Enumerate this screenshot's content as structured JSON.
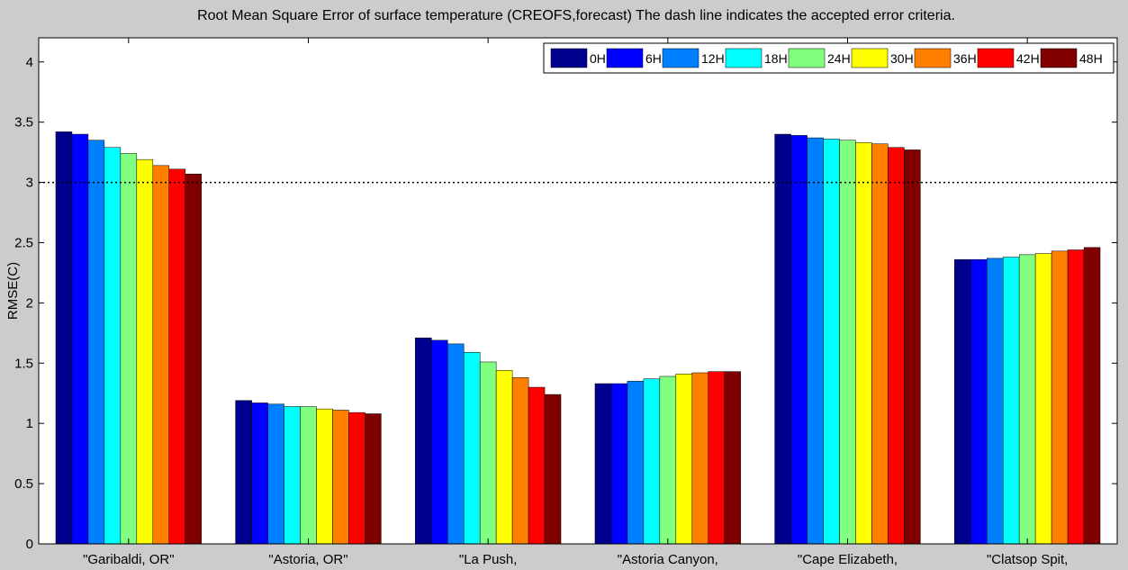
{
  "chart_data": {
    "type": "bar",
    "title": "Root Mean Square Error of surface temperature  (CREOFS,forecast)   The dash line indicates the accepted error criteria.",
    "xlabel": "",
    "ylabel": "RMSE(C)",
    "ylim": [
      0,
      4.2
    ],
    "yticks": [
      "0",
      "0.5",
      "1",
      "1.5",
      "2",
      "2.5",
      "3",
      "3.5",
      "4"
    ],
    "grid": false,
    "legend_position": "top-right",
    "reference_line": {
      "value": 3,
      "style": "dotted"
    },
    "categories": [
      "\"Garibaldi, OR\"",
      "\"Astoria, OR\"",
      "\"La Push,",
      "\"Astoria Canyon,",
      "\"Cape Elizabeth,",
      "\"Clatsop Spit,"
    ],
    "series": [
      {
        "name": "0H",
        "color": "#00008f",
        "values": [
          3.42,
          1.19,
          1.71,
          1.33,
          3.4,
          2.36
        ]
      },
      {
        "name": "6H",
        "color": "#0000ff",
        "values": [
          3.4,
          1.17,
          1.69,
          1.33,
          3.39,
          2.36
        ]
      },
      {
        "name": "12H",
        "color": "#0080ff",
        "values": [
          3.35,
          1.16,
          1.66,
          1.35,
          3.37,
          2.37
        ]
      },
      {
        "name": "18H",
        "color": "#00ffff",
        "values": [
          3.29,
          1.14,
          1.59,
          1.37,
          3.36,
          2.38
        ]
      },
      {
        "name": "24H",
        "color": "#80ff80",
        "values": [
          3.24,
          1.14,
          1.51,
          1.39,
          3.35,
          2.4
        ]
      },
      {
        "name": "30H",
        "color": "#ffff00",
        "values": [
          3.19,
          1.12,
          1.44,
          1.41,
          3.33,
          2.41
        ]
      },
      {
        "name": "36H",
        "color": "#ff8000",
        "values": [
          3.14,
          1.11,
          1.38,
          1.42,
          3.32,
          2.43
        ]
      },
      {
        "name": "42H",
        "color": "#ff0000",
        "values": [
          3.11,
          1.09,
          1.3,
          1.43,
          3.29,
          2.44
        ]
      },
      {
        "name": "48H",
        "color": "#800000",
        "values": [
          3.07,
          1.08,
          1.24,
          1.43,
          3.27,
          2.46
        ]
      }
    ]
  }
}
